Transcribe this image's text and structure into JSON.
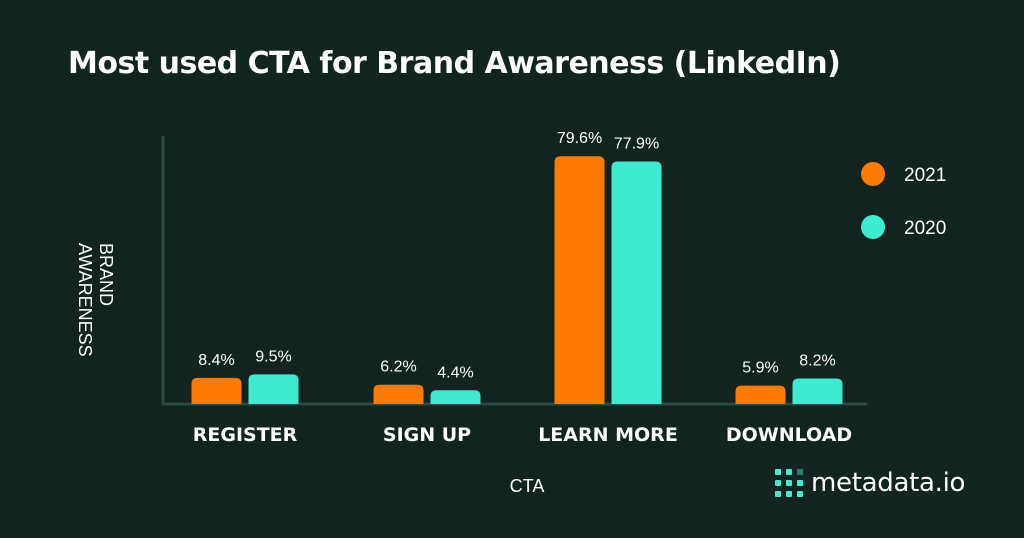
{
  "title": "Most used CTA for Brand Awareness (LinkedIn)",
  "brand": {
    "name": "metadata.io",
    "accent": "#3DEBCE"
  },
  "chart_data": {
    "type": "bar",
    "title": "Most used CTA for Brand Awareness (LinkedIn)",
    "xlabel": "CTA",
    "ylabel": "BRAND AWARENESS",
    "categories": [
      "REGISTER",
      "SIGN UP",
      "LEARN MORE",
      "DOWNLOAD"
    ],
    "series": [
      {
        "name": "2021",
        "color": "#FF7A00",
        "values": [
          8.4,
          6.2,
          79.6,
          5.9
        ],
        "labels": [
          "8.4%",
          "6.2%",
          "79.6%",
          "5.9%"
        ]
      },
      {
        "name": "2020",
        "color": "#3DEBCE",
        "values": [
          9.5,
          4.4,
          77.9,
          8.2
        ],
        "labels": [
          "9.5%",
          "4.4%",
          "77.9%",
          "8.2%"
        ]
      }
    ],
    "ylim": [
      0,
      100
    ],
    "grid": false,
    "legend": "right"
  }
}
